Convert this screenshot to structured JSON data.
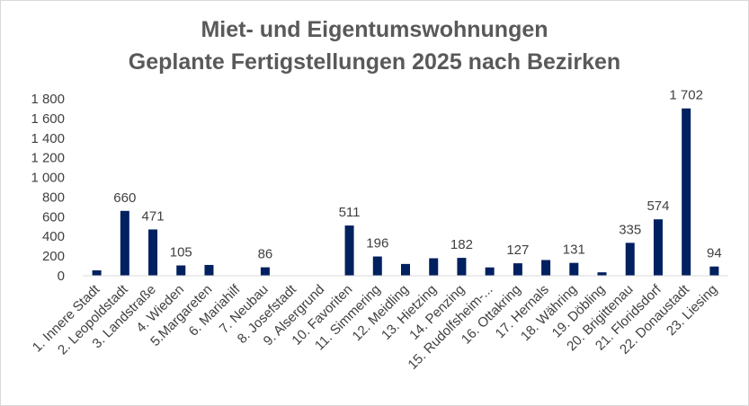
{
  "chart_data": {
    "type": "bar",
    "title_line1": "Miet- und Eigentumswohnungen",
    "title_line2": "Geplante Fertigstellungen 2025 nach Bezirken",
    "xlabel": "",
    "ylabel": "",
    "ylim": [
      0,
      1800
    ],
    "yticks": [
      0,
      200,
      400,
      600,
      800,
      1000,
      1200,
      1400,
      1600,
      1800
    ],
    "ytick_labels": [
      "0",
      "200",
      "400",
      "600",
      "800",
      "1 000",
      "1 200",
      "1 400",
      "1 600",
      "1 800"
    ],
    "categories": [
      "1. Innere Stadt",
      "2. Leopoldstadt",
      "3. Landstraße",
      "4. Wieden",
      "5.Margareten",
      "6. Mariahilf",
      "7. Neubau",
      "8. Josefstadt",
      "9. Alsergrund",
      "10. Favoriten",
      "11. Simmering",
      "12. Meidling",
      "13. Hietzing",
      "14. Penzing",
      "15. Rudolfsheim-...",
      "16. Ottakring",
      "17. Hernals",
      "18. Währing",
      "19. Döbling",
      "20. Brigittenau",
      "21. Floridsdorf",
      "22. Donaustadt",
      "23. Liesing"
    ],
    "values": [
      55,
      660,
      471,
      105,
      110,
      0,
      86,
      0,
      0,
      511,
      196,
      120,
      178,
      182,
      85,
      127,
      160,
      131,
      35,
      335,
      574,
      1702,
      94
    ],
    "data_labels": [
      "",
      "660",
      "471",
      "105",
      "",
      "",
      "86",
      "",
      "",
      "511",
      "196",
      "",
      "",
      "182",
      "",
      "127",
      "",
      "131",
      "",
      "335",
      "574",
      "1 702",
      "94"
    ],
    "bar_color": "#002060",
    "grid": false
  }
}
